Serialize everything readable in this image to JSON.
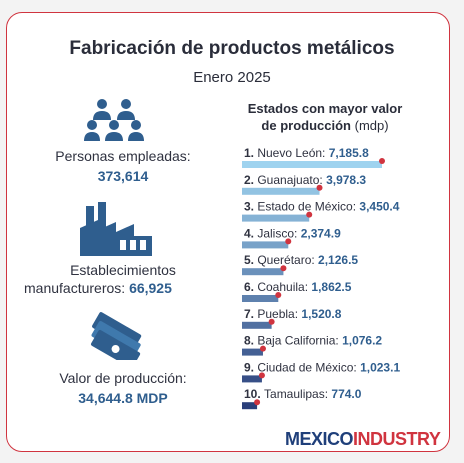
{
  "title": "Fabricación de productos metálicos",
  "subtitle": "Enero 2025",
  "stats": [
    {
      "label": "Personas empleadas:",
      "value": "373,614"
    },
    {
      "label_line1": "Establecimientos",
      "label_line2": "manufactureros:",
      "value": "66,925"
    },
    {
      "label": "Valor de producción:",
      "value": "34,644.8 MDP"
    }
  ],
  "chart_title_line1": "Estados con mayor valor",
  "chart_title_line2": "de producción",
  "chart_title_unit": "(mdp)",
  "brand": {
    "part1": "MEXICO",
    "part2": "INDUSTRY"
  },
  "colors": {
    "accent": "#d0343f",
    "bar_light": "#9fd3ef",
    "bar_dark": "#2a3f7a",
    "value_text": "#2f5e8e"
  },
  "icons": [
    "people-group-icon",
    "factory-icon",
    "money-bills-icon"
  ],
  "chart_data": {
    "type": "bar",
    "orientation": "horizontal",
    "title": "Estados con mayor valor de producción (mdp)",
    "categories": [
      "Nuevo León",
      "Guanajuato",
      "Estado de México",
      "Jalisco",
      "Querétaro",
      "Coahuila",
      "Puebla",
      "Baja California",
      "Ciudad de México",
      "Tamaulipas"
    ],
    "ranks": [
      "1.",
      "2.",
      "3.",
      "4.",
      "5.",
      "6.",
      "7.",
      "8.",
      "9.",
      "10."
    ],
    "labels": [
      "7,185.8",
      "3,978.3",
      "3,450.4",
      "2,374.9",
      "2,126.5",
      "1,862.5",
      "1,520.8",
      "1,076.2",
      "1,023.1",
      "774.0"
    ],
    "values": [
      7185.8,
      3978.3,
      3450.4,
      2374.9,
      2126.5,
      1862.5,
      1520.8,
      1076.2,
      1023.1,
      774.0
    ],
    "xlim": [
      0,
      7185.8
    ],
    "grid": false,
    "legend": false
  }
}
